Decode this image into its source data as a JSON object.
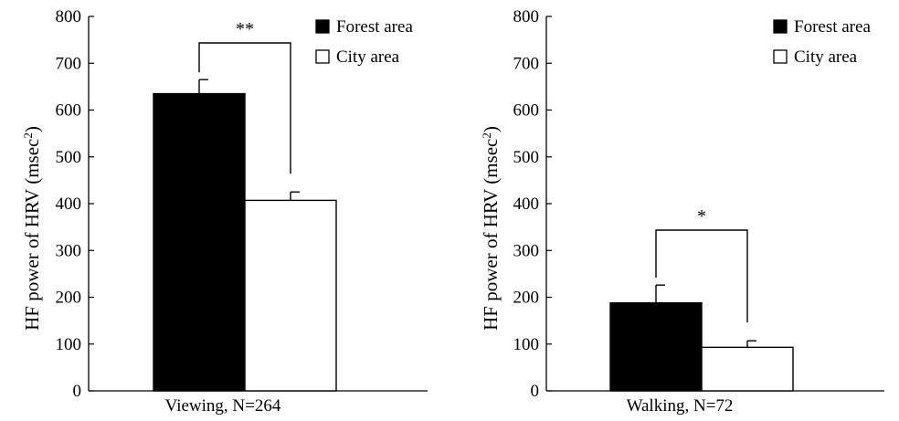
{
  "chart_data": [
    {
      "type": "bar",
      "categories": [
        "Viewing, N=264"
      ],
      "xlabel": "Viewing, N=264",
      "ylabel_main": "HF power of HRV (msec",
      "ylabel_sup": "2",
      "ylabel_close": ")",
      "ylim": [
        0,
        800
      ],
      "yticks": [
        "0",
        "100",
        "200",
        "300",
        "400",
        "500",
        "600",
        "700",
        "800"
      ],
      "series": [
        {
          "name": "Forest area",
          "color": "#000000",
          "values": [
            635
          ],
          "error": [
            30
          ]
        },
        {
          "name": "City area",
          "color": "#ffffff",
          "values": [
            407
          ],
          "error": [
            18
          ]
        }
      ],
      "significance": "**",
      "legend": {
        "position": "top-right",
        "items": [
          "Forest area",
          "City area"
        ]
      },
      "grid": false
    },
    {
      "type": "bar",
      "categories": [
        "Walking, N=72"
      ],
      "xlabel": "Walking, N=72",
      "ylabel_main": "HF power of HRV (msec",
      "ylabel_sup": "2",
      "ylabel_close": ")",
      "ylim": [
        0,
        800
      ],
      "yticks": [
        "0",
        "100",
        "200",
        "300",
        "400",
        "500",
        "600",
        "700",
        "800"
      ],
      "series": [
        {
          "name": "Forest area",
          "color": "#000000",
          "values": [
            188
          ],
          "error": [
            38
          ]
        },
        {
          "name": "City area",
          "color": "#ffffff",
          "values": [
            93
          ],
          "error": [
            14
          ]
        }
      ],
      "significance": "*",
      "legend": {
        "position": "top-right",
        "items": [
          "Forest area",
          "City area"
        ]
      },
      "grid": false
    }
  ]
}
